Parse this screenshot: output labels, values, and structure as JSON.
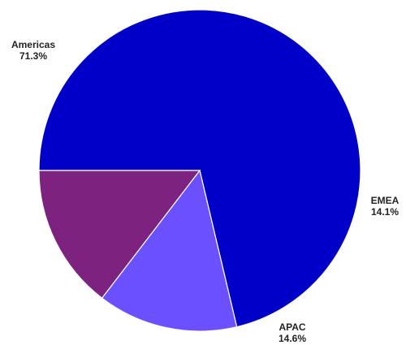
{
  "chart_data": {
    "type": "pie",
    "title": "",
    "slices": [
      {
        "name": "Americas",
        "value": 71.3,
        "label": "71.3%",
        "color": "#0000C8"
      },
      {
        "name": "EMEA",
        "value": 14.1,
        "label": "14.1%",
        "color": "#6A50FF"
      },
      {
        "name": "APAC",
        "value": 14.6,
        "label": "14.6%",
        "color": "#7E2280"
      }
    ],
    "legend": "none",
    "start_angle_deg": 180,
    "direction": "clockwise"
  }
}
